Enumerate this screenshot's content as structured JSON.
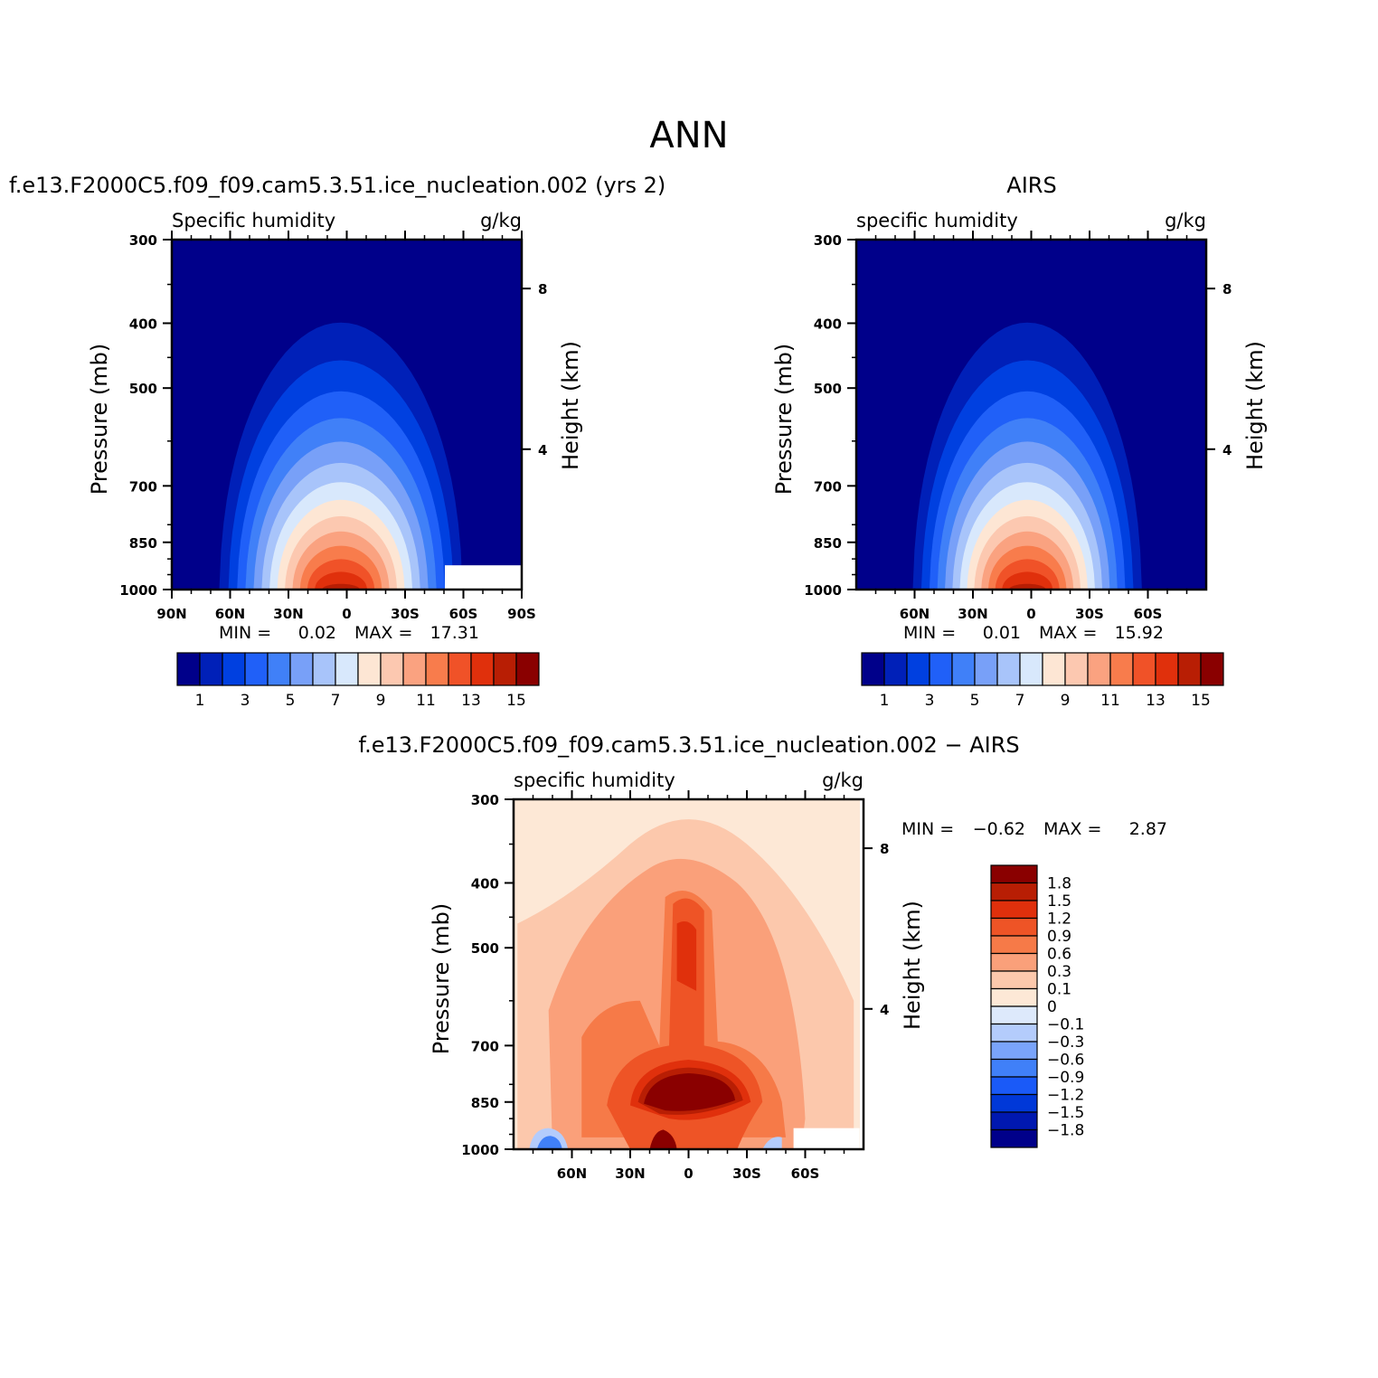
{
  "title": "ANN",
  "chart_data": [
    {
      "type": "contour",
      "case_title": "f.e13.F2000C5.f09_f09.cam5.3.51.ice_nucleation.002 (yrs 2)",
      "left_label": "Specific humidity",
      "right_label": "g/kg",
      "ylabel": "Pressure (mb)",
      "ylabel_right": "Height (km)",
      "x_ticks": [
        "90N",
        "60N",
        "30N",
        "0",
        "30S",
        "60S",
        "90S"
      ],
      "y_ticks": [
        "300",
        "400",
        "500",
        "700",
        "850",
        "1000"
      ],
      "height_ticks": [
        "8",
        "4"
      ],
      "min_text": "MIN =",
      "min_value": "0.02",
      "max_text": "MAX =",
      "max_value": "17.31",
      "levels": [
        1,
        2,
        3,
        4,
        5,
        6,
        7,
        8,
        9,
        10,
        11,
        12,
        13,
        14,
        15
      ],
      "colorbar_labels": [
        "1",
        "3",
        "5",
        "7",
        "9",
        "11",
        "13",
        "15"
      ]
    },
    {
      "type": "contour",
      "case_title": "AIRS",
      "left_label": "specific humidity",
      "right_label": "g/kg",
      "ylabel": "Pressure (mb)",
      "ylabel_right": "Height (km)",
      "x_ticks": [
        "60N",
        "30N",
        "0",
        "30S",
        "60S"
      ],
      "y_ticks": [
        "300",
        "400",
        "500",
        "700",
        "850",
        "1000"
      ],
      "height_ticks": [
        "8",
        "4"
      ],
      "min_text": "MIN =",
      "min_value": "0.01",
      "max_text": "MAX =",
      "max_value": "15.92",
      "levels": [
        1,
        2,
        3,
        4,
        5,
        6,
        7,
        8,
        9,
        10,
        11,
        12,
        13,
        14,
        15
      ],
      "colorbar_labels": [
        "1",
        "3",
        "5",
        "7",
        "9",
        "11",
        "13",
        "15"
      ]
    },
    {
      "type": "contour",
      "case_title": "f.e13.F2000C5.f09_f09.cam5.3.51.ice_nucleation.002 − AIRS",
      "left_label": "specific humidity",
      "right_label": "g/kg",
      "ylabel": "Pressure (mb)",
      "ylabel_right": "Height (km)",
      "x_ticks": [
        "60N",
        "30N",
        "0",
        "30S",
        "60S"
      ],
      "y_ticks": [
        "300",
        "400",
        "500",
        "700",
        "850",
        "1000"
      ],
      "height_ticks": [
        "8",
        "4"
      ],
      "min_text": "MIN =",
      "min_value": "−0.62",
      "max_text": "MAX =",
      "max_value": "2.87",
      "levels": [
        -1.8,
        -1.5,
        -1.2,
        -0.9,
        -0.6,
        -0.3,
        -0.1,
        0,
        0.1,
        0.3,
        0.6,
        0.9,
        1.2,
        1.5,
        1.8
      ],
      "colorbar_labels": [
        "1.8",
        "1.5",
        "1.2",
        "0.9",
        "0.6",
        "0.3",
        "0.1",
        "0",
        "−0.1",
        "−0.3",
        "−0.6",
        "−0.9",
        "−1.2",
        "−1.5",
        "−1.8"
      ]
    }
  ],
  "palette": [
    "#00008a",
    "#0020b8",
    "#0040e0",
    "#2060f8",
    "#4080f8",
    "#78a0f8",
    "#a8c4fa",
    "#d8e8fc",
    "#fde6d4",
    "#fcc8b0",
    "#faa280",
    "#f87c4c",
    "#f05228",
    "#e0300c",
    "#b81e04",
    "#8a0000"
  ]
}
